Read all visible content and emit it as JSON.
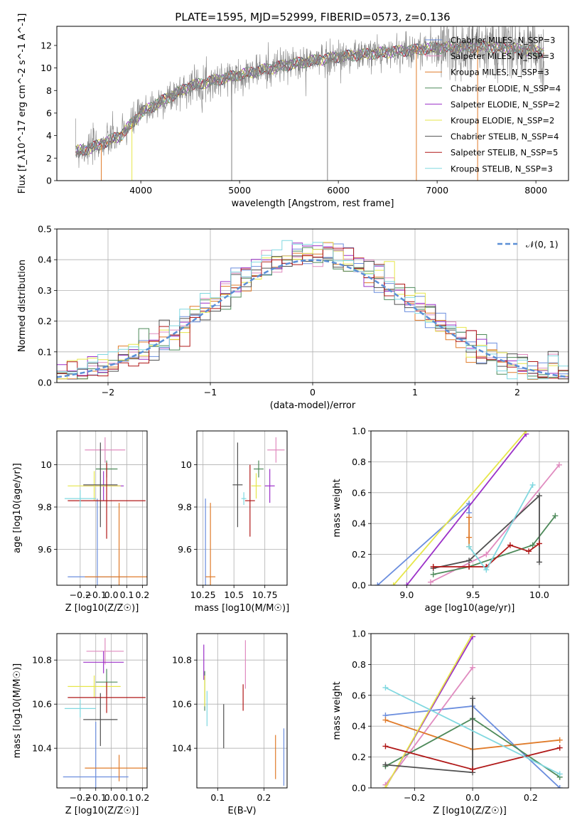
{
  "title": "PLATE=1595, MJD=52999, FIBERID=0573, z=0.136",
  "colors": {
    "Chabrier MILES": "#6b8ede",
    "Salpeter MILES": "#e08bbf",
    "Kroupa MILES": "#e07b2a",
    "Chabrier ELODIE": "#4e8a5a",
    "Salpeter ELODIE": "#9b30c8",
    "Kroupa ELODIE": "#e6e64a",
    "Chabrier STELIB": "#505050",
    "Salpeter STELIB": "#b01818",
    "Kroupa STELIB": "#80d8e0",
    "data": "#808080",
    "normal": "#5b8fd6"
  },
  "chart_data": [
    {
      "id": "spectrum",
      "type": "line",
      "xlabel": "wavelength [Angstrom, rest frame]",
      "ylabel": "Flux [f_λ10^-17 erg cm^-2 s^-1 A^-1]",
      "xlim": [
        3150,
        8330
      ],
      "ylim": [
        0,
        13.7
      ],
      "xticks": [
        4000,
        5000,
        6000,
        7000,
        8000
      ],
      "yticks": [
        0,
        2,
        4,
        6,
        8,
        10,
        12
      ],
      "grid": false,
      "legend_position": "lower-right",
      "data_range": [
        3340,
        8080
      ],
      "continuum": {
        "x": [
          3340,
          3500,
          3800,
          4000,
          4200,
          4500,
          5000,
          5500,
          6000,
          6500,
          7000,
          7500,
          8000,
          8080
        ],
        "y": [
          2.6,
          2.9,
          4.0,
          6.0,
          7.0,
          8.4,
          9.4,
          10.3,
          11.0,
          11.4,
          11.8,
          11.9,
          11.5,
          11.4
        ]
      },
      "legend": [
        {
          "label": "Chabrier MILES, N_SSP=3",
          "color": "#6b8ede"
        },
        {
          "label": "Salpeter MILES, N_SSP=3",
          "color": "#e08bbf"
        },
        {
          "label": "Kroupa MILES, N_SSP=3",
          "color": "#e07b2a"
        },
        {
          "label": "Chabrier ELODIE, N_SSP=4",
          "color": "#4e8a5a"
        },
        {
          "label": "Salpeter ELODIE, N_SSP=2",
          "color": "#9b30c8"
        },
        {
          "label": "Kroupa ELODIE, N_SSP=2",
          "color": "#e6e64a"
        },
        {
          "label": "Chabrier STELIB, N_SSP=4",
          "color": "#505050"
        },
        {
          "label": "Salpeter STELIB, N_SSP=5",
          "color": "#b01818"
        },
        {
          "label": "Kroupa STELIB, N_SSP=3",
          "color": "#80d8e0"
        }
      ]
    },
    {
      "id": "residuals",
      "type": "line",
      "xlabel": "(data-model)/error",
      "ylabel": "Normed distribution",
      "xlim": [
        -2.5,
        2.5
      ],
      "ylim": [
        0,
        0.5
      ],
      "xticks": [
        -2,
        -1,
        0,
        1,
        2
      ],
      "yticks": [
        0.0,
        0.1,
        0.2,
        0.3,
        0.4,
        0.5
      ],
      "grid": true,
      "legend_position": "upper-right",
      "normal_label": "𝒩(0, 1)",
      "bin_width": 0.1
    },
    {
      "id": "age-Z",
      "type": "scatter",
      "xlabel": "Z [log10(Z/Z☉)]",
      "ylabel": "age  [log10(age/yr)]",
      "xlim": [
        -0.35,
        0.23
      ],
      "ylim": [
        9.43,
        10.16
      ],
      "xticks": [
        -0.2,
        -0.1,
        0.0,
        0.1,
        0.2
      ],
      "yticks": [
        9.6,
        9.8,
        10.0
      ],
      "grid": true,
      "points": [
        {
          "m": "Chabrier MILES",
          "x": -0.09,
          "y": 9.47,
          "xerr": 0.19,
          "yerr": 0.37
        },
        {
          "m": "Salpeter MILES",
          "x": -0.04,
          "y": 10.07,
          "xerr": 0.13,
          "yerr": 0.06
        },
        {
          "m": "Kroupa MILES",
          "x": 0.05,
          "y": 9.47,
          "xerr": 0.22,
          "yerr": 0.35
        },
        {
          "m": "Chabrier ELODIE",
          "x": -0.03,
          "y": 9.98,
          "xerr": 0.07,
          "yerr": 0.04
        },
        {
          "m": "Salpeter ELODIE",
          "x": -0.05,
          "y": 9.9,
          "xerr": 0.13,
          "yerr": 0.07
        },
        {
          "m": "Kroupa ELODIE",
          "x": -0.11,
          "y": 9.9,
          "xerr": 0.17,
          "yerr": 0.07
        },
        {
          "m": "Chabrier STELIB",
          "x": -0.07,
          "y": 9.905,
          "xerr": 0.11,
          "yerr": 0.2
        },
        {
          "m": "Salpeter STELIB",
          "x": -0.03,
          "y": 9.83,
          "xerr": 0.25,
          "yerr": 0.18
        },
        {
          "m": "Kroupa STELIB",
          "x": -0.2,
          "y": 9.84,
          "xerr": 0.1,
          "yerr": 0.04
        }
      ]
    },
    {
      "id": "age-mass",
      "type": "scatter",
      "xlabel": "mass [log10(M/M☉)]",
      "ylabel": "",
      "xlim": [
        10.2,
        10.93
      ],
      "ylim": [
        9.43,
        10.16
      ],
      "xticks": [
        10.25,
        10.5,
        10.75
      ],
      "yticks": [
        9.6,
        9.8,
        10.0
      ],
      "grid": true,
      "points": [
        {
          "m": "Chabrier MILES",
          "x": 10.27,
          "y": 9.47,
          "xerr": 0,
          "yerr": 0.37
        },
        {
          "m": "Salpeter MILES",
          "x": 10.84,
          "y": 10.07,
          "xerr": 0.07,
          "yerr": 0.06
        },
        {
          "m": "Kroupa MILES",
          "x": 10.31,
          "y": 9.47,
          "xerr": 0.04,
          "yerr": 0.35
        },
        {
          "m": "Chabrier ELODIE",
          "x": 10.7,
          "y": 9.98,
          "xerr": 0.04,
          "yerr": 0.04
        },
        {
          "m": "Salpeter ELODIE",
          "x": 10.79,
          "y": 9.9,
          "xerr": 0.04,
          "yerr": 0.08
        },
        {
          "m": "Kroupa ELODIE",
          "x": 10.68,
          "y": 9.9,
          "xerr": 0.04,
          "yerr": 0.06
        },
        {
          "m": "Chabrier STELIB",
          "x": 10.53,
          "y": 9.905,
          "xerr": 0.04,
          "yerr": 0.2
        },
        {
          "m": "Salpeter STELIB",
          "x": 10.63,
          "y": 9.83,
          "xerr": 0.04,
          "yerr": 0.17
        },
        {
          "m": "Kroupa STELIB",
          "x": 10.58,
          "y": 9.84,
          "xerr": 0.02,
          "yerr": 0.03
        }
      ]
    },
    {
      "id": "weight-age",
      "type": "line",
      "xlabel": "age  [log10(age/yr)]",
      "ylabel": "mass weight",
      "xlim": [
        8.73,
        10.22
      ],
      "ylim": [
        0,
        1
      ],
      "xticks": [
        9.0,
        9.5,
        10.0
      ],
      "yticks": [
        0.0,
        0.2,
        0.4,
        0.6,
        0.8,
        1.0
      ],
      "grid": true,
      "series": [
        {
          "m": "Chabrier MILES",
          "x": [
            8.78,
            9.47,
            9.47
          ],
          "y": [
            0.0,
            0.53,
            0.47
          ]
        },
        {
          "m": "Salpeter MILES",
          "x": [
            9.18,
            9.6,
            10.15
          ],
          "y": [
            0.02,
            0.2,
            0.78
          ]
        },
        {
          "m": "Kroupa MILES",
          "x": [
            9.47,
            9.47,
            9.47
          ],
          "y": [
            0.44,
            0.31,
            0.25
          ]
        },
        {
          "m": "Chabrier ELODIE",
          "x": [
            9.2,
            9.47,
            9.95,
            10.12
          ],
          "y": [
            0.07,
            0.12,
            0.26,
            0.45
          ]
        },
        {
          "m": "Salpeter ELODIE",
          "x": [
            9.0,
            9.9
          ],
          "y": [
            0.0,
            0.98
          ]
        },
        {
          "m": "Kroupa ELODIE",
          "x": [
            8.9,
            9.9
          ],
          "y": [
            0.0,
            1.0
          ]
        },
        {
          "m": "Chabrier STELIB",
          "x": [
            9.2,
            9.47,
            10.0,
            10.0
          ],
          "y": [
            0.11,
            0.16,
            0.58,
            0.15
          ]
        },
        {
          "m": "Salpeter STELIB",
          "x": [
            9.2,
            9.47,
            9.6,
            9.78,
            9.92,
            10.0
          ],
          "y": [
            0.12,
            0.12,
            0.12,
            0.26,
            0.22,
            0.27
          ]
        },
        {
          "m": "Kroupa STELIB",
          "x": [
            9.47,
            9.6,
            9.95
          ],
          "y": [
            0.25,
            0.1,
            0.65
          ]
        }
      ]
    },
    {
      "id": "mass-Z",
      "type": "scatter",
      "xlabel": "Z [log10(Z/Z☉)]",
      "ylabel": "mass [log10(M/M☉)]",
      "xlim": [
        -0.35,
        0.23
      ],
      "ylim": [
        10.22,
        10.92
      ],
      "xticks": [
        -0.2,
        -0.1,
        0.0,
        0.1,
        0.2
      ],
      "yticks": [
        10.4,
        10.6,
        10.8
      ],
      "grid": true,
      "points": [
        {
          "m": "Chabrier MILES",
          "x": -0.1,
          "y": 10.27,
          "xerr": 0.21,
          "yerr": 0.25
        },
        {
          "m": "Salpeter MILES",
          "x": -0.04,
          "y": 10.84,
          "xerr": 0.12,
          "yerr": 0.06
        },
        {
          "m": "Kroupa MILES",
          "x": 0.05,
          "y": 10.31,
          "xerr": 0.22,
          "yerr": 0.06
        },
        {
          "m": "Chabrier ELODIE",
          "x": -0.03,
          "y": 10.7,
          "xerr": 0.07,
          "yerr": 0.06
        },
        {
          "m": "Salpeter ELODIE",
          "x": -0.05,
          "y": 10.79,
          "xerr": 0.13,
          "yerr": 0.05
        },
        {
          "m": "Kroupa ELODIE",
          "x": -0.11,
          "y": 10.68,
          "xerr": 0.17,
          "yerr": 0.05
        },
        {
          "m": "Chabrier STELIB",
          "x": -0.07,
          "y": 10.53,
          "xerr": 0.11,
          "yerr": 0.12
        },
        {
          "m": "Salpeter STELIB",
          "x": -0.03,
          "y": 10.63,
          "xerr": 0.25,
          "yerr": 0.07
        },
        {
          "m": "Kroupa STELIB",
          "x": -0.2,
          "y": 10.58,
          "xerr": 0.1,
          "yerr": 0.04
        }
      ]
    },
    {
      "id": "mass-ebv",
      "type": "scatter",
      "xlabel": "E(B-V)",
      "ylabel": "",
      "xlim": [
        0.055,
        0.25
      ],
      "ylim": [
        10.22,
        10.92
      ],
      "xticks": [
        0.1,
        0.2
      ],
      "yticks": [
        10.4,
        10.6,
        10.8
      ],
      "grid": true,
      "points": [
        {
          "m": "Chabrier MILES",
          "x": 0.243,
          "y": 10.36,
          "xerr": 0,
          "yerr": 0.13
        },
        {
          "m": "Salpeter MILES",
          "x": 0.16,
          "y": 10.78,
          "xerr": 0,
          "yerr": 0.11
        },
        {
          "m": "Kroupa MILES",
          "x": 0.225,
          "y": 10.36,
          "xerr": 0,
          "yerr": 0.1
        },
        {
          "m": "Chabrier ELODIE",
          "x": 0.072,
          "y": 10.66,
          "xerr": 0,
          "yerr": 0.09
        },
        {
          "m": "Salpeter ELODIE",
          "x": 0.07,
          "y": 10.79,
          "xerr": 0,
          "yerr": 0.08
        },
        {
          "m": "Kroupa ELODIE",
          "x": 0.072,
          "y": 10.66,
          "xerr": 0,
          "yerr": 0.07
        },
        {
          "m": "Chabrier STELIB",
          "x": 0.113,
          "y": 10.5,
          "xerr": 0,
          "yerr": 0.1
        },
        {
          "m": "Salpeter STELIB",
          "x": 0.155,
          "y": 10.63,
          "xerr": 0,
          "yerr": 0.06
        },
        {
          "m": "Kroupa STELIB",
          "x": 0.077,
          "y": 10.58,
          "xerr": 0,
          "yerr": 0.08
        }
      ]
    },
    {
      "id": "weight-Z",
      "type": "line",
      "xlabel": "Z [log10(Z/Z☉)]",
      "ylabel": "mass weight",
      "xlim": [
        -0.35,
        0.33
      ],
      "ylim": [
        0,
        1
      ],
      "xticks": [
        -0.2,
        0.0,
        0.2
      ],
      "yticks": [
        0.0,
        0.2,
        0.4,
        0.6,
        0.8,
        1.0
      ],
      "grid": true,
      "series": [
        {
          "m": "Chabrier MILES",
          "x": [
            -0.3,
            0.0,
            0.3
          ],
          "y": [
            0.47,
            0.53,
            0.0
          ]
        },
        {
          "m": "Salpeter MILES",
          "x": [
            -0.3,
            0.0
          ],
          "y": [
            0.02,
            0.78
          ]
        },
        {
          "m": "Kroupa MILES",
          "x": [
            -0.3,
            0.0,
            0.3
          ],
          "y": [
            0.44,
            0.25,
            0.31
          ]
        },
        {
          "m": "Chabrier ELODIE",
          "x": [
            -0.3,
            0.0,
            0.3
          ],
          "y": [
            0.14,
            0.45,
            0.07
          ]
        },
        {
          "m": "Salpeter ELODIE",
          "x": [
            -0.3,
            0.0
          ],
          "y": [
            0.0,
            0.98
          ]
        },
        {
          "m": "Kroupa ELODIE",
          "x": [
            -0.3,
            0.0
          ],
          "y": [
            0.0,
            1.0
          ]
        },
        {
          "m": "Chabrier STELIB",
          "x": [
            -0.3,
            0.0,
            0.0
          ],
          "y": [
            0.15,
            0.1,
            0.58
          ]
        },
        {
          "m": "Salpeter STELIB",
          "x": [
            -0.3,
            0.0,
            0.3
          ],
          "y": [
            0.27,
            0.12,
            0.26
          ]
        },
        {
          "m": "Kroupa STELIB",
          "x": [
            -0.3,
            0.3
          ],
          "y": [
            0.65,
            0.09
          ]
        }
      ]
    }
  ]
}
